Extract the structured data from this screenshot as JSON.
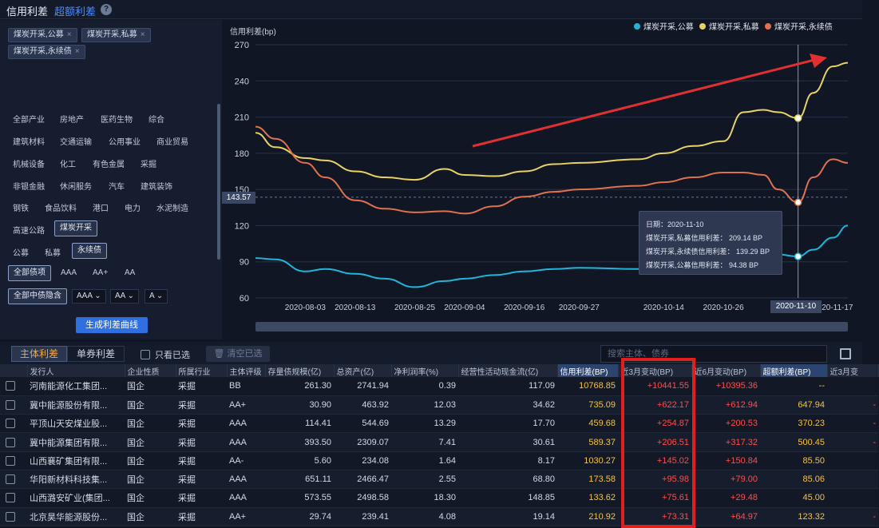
{
  "top_tabs": {
    "credit": "信用利差",
    "excess": "超额利差",
    "help": "?"
  },
  "selected_series": [
    {
      "label": "煤炭开采,公募"
    },
    {
      "label": "煤炭开采,私募"
    },
    {
      "label": "煤炭开采,永续债"
    }
  ],
  "industries": {
    "rows": [
      [
        "全部产业",
        "房地产",
        "医药生物",
        "综合"
      ],
      [
        "建筑材料",
        "交通运输",
        "公用事业",
        "商业贸易"
      ],
      [
        "机械设备",
        "化工",
        "有色金属",
        "采掘"
      ],
      [
        "非银金融",
        "休闲服务",
        "汽车",
        "建筑装饰"
      ],
      [
        "钢铁",
        "食品饮料",
        "港口",
        "电力",
        "水泥制造"
      ]
    ],
    "highway": "高速公路",
    "coal_selected": "煤炭开采"
  },
  "issue_types": {
    "public": "公募",
    "private": "私募",
    "perpetual": "永续债"
  },
  "ratings": {
    "all_bond": "全部债项",
    "aaa": "AAA",
    "aa_plus": "AA+",
    "aa": "AA"
  },
  "implied": {
    "all_implied": "全部中债隐含",
    "dd1": "AAA",
    "dd2": "AA",
    "dd3": "A"
  },
  "generate_button": "生成利差曲线",
  "chart": {
    "ylabel": "信用利差(bp)",
    "cursor_y": "143.57",
    "cursor_x": "2020-11-10",
    "tooltip": {
      "date_label": "日期：",
      "date": "2020-11-10",
      "lines": [
        "煤炭开采,私募信用利差：  209.14 BP",
        "煤炭开采,永续债信用利差：  139.29 BP",
        "煤炭开采,公募信用利差：  94.38 BP"
      ]
    },
    "colors": {
      "public": "#1fb6d8",
      "private": "#e8d262",
      "perpetual": "#e0714e",
      "arrow": "#e03030"
    }
  },
  "chart_data": {
    "type": "line",
    "title": "",
    "ylabel": "信用利差(bp)",
    "ylim": [
      60,
      270
    ],
    "yticks": [
      60,
      90,
      120,
      150,
      180,
      210,
      240,
      270
    ],
    "xticks": [
      "2020-08-03",
      "2020-08-13",
      "2020-08-25",
      "2020-09-04",
      "2020-09-16",
      "2020-09-27",
      "2020-10-14",
      "2020-10-26",
      "2020-11-10",
      "2020-11-17"
    ],
    "legend_position": "top-right",
    "x": [
      "2020-07-24",
      "2020-07-28",
      "2020-08-03",
      "2020-08-07",
      "2020-08-13",
      "2020-08-19",
      "2020-08-25",
      "2020-08-31",
      "2020-09-04",
      "2020-09-10",
      "2020-09-16",
      "2020-09-22",
      "2020-09-27",
      "2020-10-09",
      "2020-10-14",
      "2020-10-20",
      "2020-10-26",
      "2020-10-30",
      "2020-11-03",
      "2020-11-06",
      "2020-11-10",
      "2020-11-13",
      "2020-11-17",
      "2020-11-20"
    ],
    "series": [
      {
        "name": "煤炭开采,公募",
        "values": [
          93,
          92,
          82,
          84,
          80,
          76,
          69,
          74,
          76,
          79,
          82,
          84,
          85,
          84,
          86,
          87,
          87,
          90,
          94,
          96,
          94.38,
          100,
          110,
          120
        ]
      },
      {
        "name": "煤炭开采,私募",
        "values": [
          197,
          185,
          176,
          174,
          165,
          160,
          158,
          167,
          162,
          161,
          165,
          171,
          172,
          175,
          180,
          186,
          190,
          214,
          216,
          214,
          209.14,
          230,
          252,
          255
        ]
      },
      {
        "name": "煤炭开采,永续债",
        "values": [
          202,
          192,
          172,
          160,
          141,
          134,
          131,
          132,
          130,
          136,
          144,
          148,
          150,
          153,
          156,
          160,
          164,
          164,
          162,
          150,
          139.29,
          160,
          175,
          172
        ]
      }
    ]
  },
  "toolbar": {
    "tab_main": "主体利差",
    "tab_single": "单券利差",
    "only_selected": "只看已选",
    "clear": "清空已选",
    "search_placeholder": "搜索主体、债券"
  },
  "table": {
    "headers": [
      "发行人",
      "企业性质",
      "所属行业",
      "主体评级",
      "存量债规模(亿)",
      "总资产(亿)",
      "净利润率(%)",
      "经营性活动现金流(亿)",
      "信用利差(BP)",
      "近3月变动(BP)",
      "近6月变动(BP)",
      "超额利差(BP)",
      "近3月变"
    ],
    "rows": [
      [
        "河南能源化工集团...",
        "国企",
        "采掘",
        "BB",
        "261.30",
        "2741.94",
        "0.39",
        "117.09",
        "10768.85",
        "+10441.55",
        "+10395.36",
        "--",
        ""
      ],
      [
        "冀中能源股份有限...",
        "国企",
        "采掘",
        "AA+",
        "30.90",
        "463.92",
        "12.03",
        "34.62",
        "735.09",
        "+622.17",
        "+612.94",
        "647.94",
        "-"
      ],
      [
        "平顶山天安煤业股...",
        "国企",
        "采掘",
        "AAA",
        "114.41",
        "544.69",
        "13.29",
        "17.70",
        "459.68",
        "+254.87",
        "+200.53",
        "370.23",
        "-"
      ],
      [
        "冀中能源集团有限...",
        "国企",
        "采掘",
        "AAA",
        "393.50",
        "2309.07",
        "7.41",
        "30.61",
        "589.37",
        "+206.51",
        "+317.32",
        "500.45",
        "-"
      ],
      [
        "山西襄矿集团有限...",
        "国企",
        "采掘",
        "AA-",
        "5.60",
        "234.08",
        "1.64",
        "8.17",
        "1030.27",
        "+145.02",
        "+150.84",
        "85.50",
        ""
      ],
      [
        "华阳新材料科技集...",
        "国企",
        "采掘",
        "AAA",
        "651.11",
        "2466.47",
        "2.55",
        "68.80",
        "173.58",
        "+95.98",
        "+79.00",
        "85.06",
        ""
      ],
      [
        "山西潞安矿业(集团...",
        "国企",
        "采掘",
        "AAA",
        "573.55",
        "2498.58",
        "18.30",
        "148.85",
        "133.62",
        "+75.61",
        "+29.48",
        "45.00",
        ""
      ],
      [
        "北京昊华能源股份...",
        "国企",
        "采掘",
        "AA+",
        "29.74",
        "239.41",
        "4.08",
        "19.14",
        "210.92",
        "+73.31",
        "+64.97",
        "123.32",
        "-"
      ]
    ]
  }
}
